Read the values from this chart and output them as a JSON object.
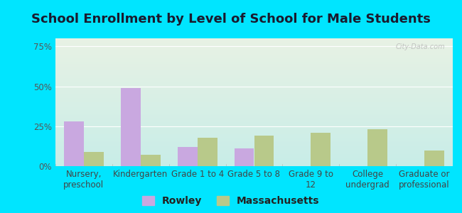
{
  "title": "School Enrollment by Level of School for Male Students",
  "categories": [
    "Nursery,\npreschool",
    "Kindergarten",
    "Grade 1 to 4",
    "Grade 5 to 8",
    "Grade 9 to\n12",
    "College\nundergrad",
    "Graduate or\nprofessional"
  ],
  "rowley": [
    28,
    49,
    12,
    11,
    0,
    0,
    0
  ],
  "massachusetts": [
    9,
    7,
    18,
    19,
    21,
    23,
    10
  ],
  "rowley_color": "#c9a8e0",
  "massachusetts_color": "#b8c98a",
  "background_outer": "#00e5ff",
  "background_inner_top": "#e8f2e4",
  "background_inner_bottom": "#c8ede8",
  "ylim": [
    0,
    80
  ],
  "yticks": [
    0,
    25,
    50,
    75
  ],
  "ytick_labels": [
    "0%",
    "25%",
    "50%",
    "75%"
  ],
  "legend_labels": [
    "Rowley",
    "Massachusetts"
  ],
  "title_fontsize": 13,
  "tick_fontsize": 8.5,
  "legend_fontsize": 10
}
